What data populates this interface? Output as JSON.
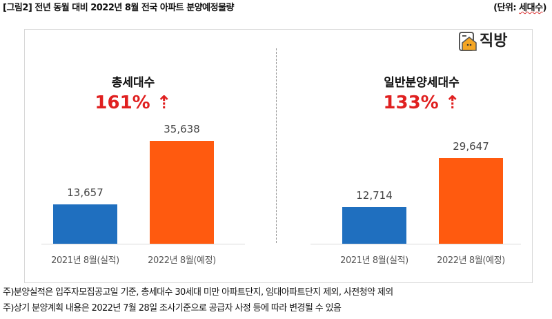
{
  "header": {
    "title": "[그림2] 전년 동월 대비 2022년 8월 전국 아파트 분양예정물량",
    "unit_prefix": "(단위: ",
    "unit_word": "세대수",
    "unit_suffix": ")"
  },
  "logo": {
    "text": "직방",
    "icon": "house-icon"
  },
  "colors": {
    "y2021": "#1f6fbf",
    "y2022": "#ff5a0f",
    "pct": "#e02020"
  },
  "chart_data": [
    {
      "type": "bar",
      "title": "총세대수",
      "annotation": "161% ⇡",
      "categories": [
        "2021년 8월(실적)",
        "2022년 8월(예정)"
      ],
      "values": [
        13657,
        35638
      ],
      "value_labels": [
        "13,657",
        "35,638"
      ]
    },
    {
      "type": "bar",
      "title": "일반분양세대수",
      "annotation": "133% ⇡",
      "categories": [
        "2021년 8월(실적)",
        "2022년 8월(예정)"
      ],
      "values": [
        12714,
        29647
      ],
      "value_labels": [
        "12,714",
        "29,647"
      ]
    }
  ],
  "notes": [
    "주)분양실적은 입주자모집공고일 기준, 총세대수 30세대 미만 아파트단지, 임대아파트단지 제외, 사전청약 제외",
    "주)상기 분양계획 내용은 2022년 7월 28일 조사기준으로 공급자 사정 등에 따라 변경될 수 있음"
  ]
}
